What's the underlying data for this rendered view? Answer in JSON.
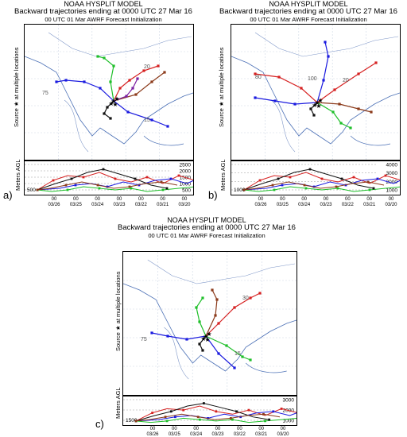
{
  "panels": [
    {
      "id": "a",
      "title_model": "NOAA HYSPLIT MODEL",
      "title_main": "Backward trajectories ending at 0000 UTC 27 Mar 16",
      "title_sub": "00 UTC 01 Mar    AWRF  Forecast Initialization",
      "source_label": "Source ★ at multiple locations",
      "agl_label": "Meters AGL",
      "letter": "a)",
      "start_height": "500",
      "height_ticks": [
        "2500",
        "2000",
        "1500",
        "1000",
        "500"
      ],
      "dates": [
        "03/26",
        "03/25",
        "03/24",
        "03/23",
        "03/22",
        "03/21",
        "03/20"
      ],
      "map_labels": [
        "75",
        "20",
        "15"
      ]
    },
    {
      "id": "b",
      "title_model": "NOAA HYSPLIT MODEL",
      "title_main": "Backward trajectories ending at 0000 UTC 27 Mar 16",
      "title_sub": "00 UTC 01 Mar    AWRF  Forecast Initialization",
      "source_label": "Source ★ at multiple locations",
      "agl_label": "Meters AGL",
      "letter": "b)",
      "start_height": "1000",
      "height_ticks": [
        "4000",
        "3000",
        "2000",
        "1000"
      ],
      "dates": [
        "03/26",
        "03/25",
        "03/24",
        "03/23",
        "03/22",
        "03/21",
        "03/20"
      ],
      "map_labels": [
        "80",
        "100",
        "20"
      ]
    },
    {
      "id": "c",
      "title_model": "NOAA HYSPLIT MODEL",
      "title_main": "Backward trajectories ending at 0000 UTC 27 Mar 16",
      "title_sub": "00 UTC 01 Mar    AWRF  Forecast Initialization",
      "source_label": "Source ★ at multiple locations",
      "agl_label": "Meters AGL",
      "letter": "c)",
      "start_height": "1500",
      "height_ticks": [
        "3000",
        "2000",
        "1000"
      ],
      "dates": [
        "03/26",
        "03/25",
        "03/24",
        "03/23",
        "03/22",
        "03/21",
        "03/20"
      ],
      "map_labels": [
        "75",
        "30",
        "15"
      ]
    }
  ],
  "tick_hour": "00",
  "series_colors": [
    "#d62020",
    "#1a1adf",
    "#1fbf2a",
    "#111111",
    "#8b3a1a",
    "#7b1fa2"
  ],
  "chart_data": {
    "type": "line",
    "title": "Backward trajectories ending at 0000 UTC 27 Mar 16",
    "ylabel": "Meters AGL",
    "x": [
      "03/26",
      "03/25",
      "03/24",
      "03/23",
      "03/22",
      "03/21",
      "03/20"
    ],
    "panels": [
      {
        "id": "a",
        "start_height_m": 500,
        "ylim": [
          0,
          2500
        ]
      },
      {
        "id": "b",
        "start_height_m": 1000,
        "ylim": [
          0,
          4000
        ]
      },
      {
        "id": "c",
        "start_height_m": 1500,
        "ylim": [
          0,
          3000
        ]
      }
    ]
  }
}
